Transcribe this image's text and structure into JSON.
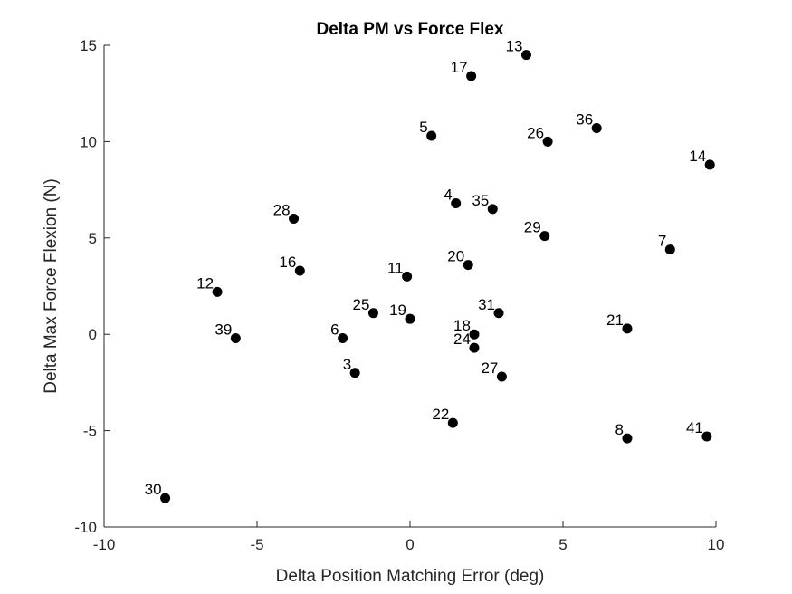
{
  "chart_data": {
    "type": "scatter",
    "title": "Delta PM vs Force Flex",
    "xlabel": "Delta Position Matching Error (deg)",
    "ylabel": "Delta Max Force Flexion (N)",
    "xlim": [
      -10,
      10
    ],
    "ylim": [
      -10,
      15
    ],
    "xticks": [
      "-10",
      "-5",
      "0",
      "5",
      "10"
    ],
    "yticks": [
      "-10",
      "-5",
      "0",
      "5",
      "10",
      "15"
    ],
    "xtick_values": [
      -10,
      -5,
      0,
      5,
      10
    ],
    "ytick_values": [
      -10,
      -5,
      0,
      5,
      10,
      15
    ],
    "grid": false,
    "marker_color": "#000000",
    "points": [
      {
        "label": "13",
        "x": 3.8,
        "y": 14.5
      },
      {
        "label": "17",
        "x": 2.0,
        "y": 13.4
      },
      {
        "label": "5",
        "x": 0.7,
        "y": 10.3
      },
      {
        "label": "26",
        "x": 4.5,
        "y": 10.0
      },
      {
        "label": "36",
        "x": 6.1,
        "y": 10.7
      },
      {
        "label": "14",
        "x": 9.8,
        "y": 8.8
      },
      {
        "label": "4",
        "x": 1.5,
        "y": 6.8
      },
      {
        "label": "35",
        "x": 2.7,
        "y": 6.5
      },
      {
        "label": "28",
        "x": -3.8,
        "y": 6.0
      },
      {
        "label": "29",
        "x": 4.4,
        "y": 5.1
      },
      {
        "label": "7",
        "x": 8.5,
        "y": 4.4
      },
      {
        "label": "16",
        "x": -3.6,
        "y": 3.3
      },
      {
        "label": "20",
        "x": 1.9,
        "y": 3.6
      },
      {
        "label": "11",
        "x": -0.1,
        "y": 3.0
      },
      {
        "label": "12",
        "x": -6.3,
        "y": 2.2
      },
      {
        "label": "25",
        "x": -1.2,
        "y": 1.1
      },
      {
        "label": "19",
        "x": 0.0,
        "y": 0.8
      },
      {
        "label": "31",
        "x": 2.9,
        "y": 1.1
      },
      {
        "label": "39",
        "x": -5.7,
        "y": -0.2
      },
      {
        "label": "6",
        "x": -2.2,
        "y": -0.2
      },
      {
        "label": "18",
        "x": 2.1,
        "y": 0.0
      },
      {
        "label": "21",
        "x": 7.1,
        "y": 0.3
      },
      {
        "label": "24",
        "x": 2.1,
        "y": -0.7
      },
      {
        "label": "3",
        "x": -1.8,
        "y": -2.0
      },
      {
        "label": "27",
        "x": 3.0,
        "y": -2.2
      },
      {
        "label": "22",
        "x": 1.4,
        "y": -4.6
      },
      {
        "label": "8",
        "x": 7.1,
        "y": -5.4
      },
      {
        "label": "41",
        "x": 9.7,
        "y": -5.3
      },
      {
        "label": "30",
        "x": -8.0,
        "y": -8.5
      }
    ]
  }
}
